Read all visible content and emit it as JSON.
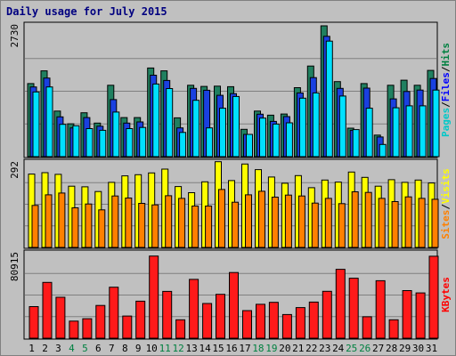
{
  "chart_data": {
    "type": "bar",
    "title": "Daily usage for July 2015",
    "categories": [
      "1",
      "2",
      "3",
      "4",
      "5",
      "6",
      "7",
      "8",
      "9",
      "10",
      "11",
      "12",
      "13",
      "14",
      "15",
      "16",
      "17",
      "18",
      "19",
      "20",
      "21",
      "22",
      "23",
      "24",
      "25",
      "26",
      "27",
      "28",
      "29",
      "30",
      "31"
    ],
    "weekend_days": [
      "4",
      "5",
      "11",
      "12",
      "18",
      "19",
      "25",
      "26"
    ],
    "grid": true,
    "panels": [
      {
        "id": "hits",
        "max_label": "2730",
        "ylim": [
          0,
          2730
        ],
        "labels": [
          {
            "text": "Pages",
            "color": "#00c8c8"
          },
          {
            "text": "Files",
            "color": "#0000ff"
          },
          {
            "text": "Hits",
            "color": "#008040"
          }
        ],
        "series": [
          {
            "name": "Hits",
            "color": "#208060",
            "values": [
              1525,
              1790,
              950,
              685,
              915,
              700,
              1490,
              815,
              815,
              1850,
              1790,
              810,
              1490,
              1465,
              1470,
              1460,
              570,
              950,
              865,
              890,
              1440,
              1890,
              2730,
              1565,
              595,
              1525,
              450,
              1490,
              1595,
              1490,
              1800
            ]
          },
          {
            "name": "Files",
            "color": "#1a40e0",
            "values": [
              1455,
              1640,
              830,
              600,
              815,
              635,
              1190,
              700,
              725,
              1700,
              1590,
              600,
              1425,
              1385,
              1280,
              1315,
              465,
              885,
              735,
              835,
              1330,
              1650,
              2510,
              1425,
              550,
              1430,
              410,
              1205,
              1360,
              1390,
              1630
            ]
          },
          {
            "name": "Pages",
            "color": "#00e0ff",
            "values": [
              1350,
              1455,
              675,
              645,
              585,
              550,
              930,
              585,
              610,
              1515,
              1420,
              505,
              1175,
              600,
              1010,
              1255,
              465,
              805,
              680,
              705,
              1220,
              1330,
              2410,
              1265,
              565,
              1010,
              255,
              1020,
              1060,
              1060,
              1390
            ]
          }
        ]
      },
      {
        "id": "visits",
        "max_label": "292",
        "ylim": [
          0,
          292
        ],
        "labels": [
          {
            "text": "Sites",
            "color": "#ff8000"
          },
          {
            "text": "Visits",
            "color": "#ffff00"
          }
        ],
        "series": [
          {
            "name": "Visits",
            "color": "#ffff00",
            "values": [
              248,
              253,
              247,
              207,
              205,
              189,
              220,
              242,
              246,
              252,
              265,
              206,
              185,
              222,
              290,
              226,
              282,
              263,
              238,
              217,
              243,
              202,
              228,
              221,
              255,
              237,
              207,
              229,
              220,
              228,
              218
            ]
          },
          {
            "name": "Sites",
            "color": "#ff8000",
            "values": [
              142,
              178,
              184,
              134,
              147,
              127,
              174,
              167,
              149,
              144,
              175,
              166,
              140,
              140,
              196,
              153,
              178,
              190,
              170,
              177,
              174,
              150,
              166,
              148,
              188,
              186,
              166,
              155,
              171,
              166,
              163
            ]
          }
        ]
      },
      {
        "id": "kbytes",
        "max_label": "80915",
        "ylim": [
          0,
          80915
        ],
        "labels": [
          {
            "text": "KBytes",
            "color": "#ff0000"
          }
        ],
        "series": [
          {
            "name": "KBytes",
            "color": "#ff1a1a",
            "values": [
              29600,
              52300,
              38400,
              16000,
              18300,
              30700,
              47800,
              20800,
              34700,
              77000,
              43900,
              17300,
              55100,
              32500,
              41100,
              61600,
              25900,
              31800,
              33600,
              22200,
              28700,
              33900,
              44000,
              64600,
              56200,
              20100,
              53900,
              17300,
              44600,
              42500,
              76800
            ]
          }
        ]
      }
    ]
  }
}
